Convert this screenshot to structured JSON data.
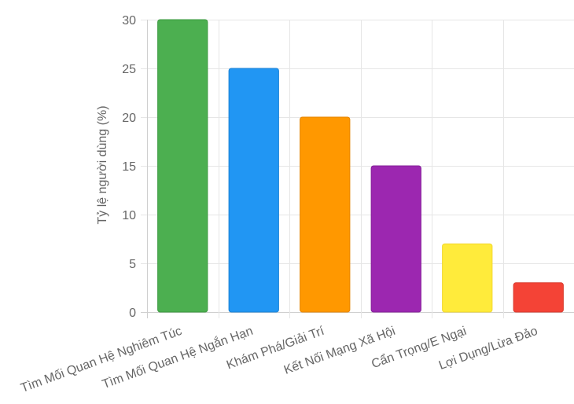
{
  "chart_data": {
    "type": "bar",
    "title": "",
    "xlabel": "",
    "ylabel": "Tỷ lệ người dùng (%)",
    "categories": [
      "Tìm Mối Quan Hệ Nghiêm Túc",
      "Tìm Mối Quan Hệ Ngắn Hạn",
      "Khám Phá/Giải Trí",
      "Kết Nối Mạng Xã Hội",
      "Cẩn Trọng/E Ngại",
      "Lợi Dụng/Lừa Đảo"
    ],
    "values": [
      30,
      25,
      20,
      15,
      7,
      3
    ],
    "colors": [
      "#4caf50",
      "#2196f3",
      "#ff9800",
      "#9c27b0",
      "#ffeb3b",
      "#f44336"
    ],
    "border_colors": [
      "#3d9a41",
      "#1a82d6",
      "#e68500",
      "#85209a",
      "#f2d82e",
      "#d93a2e"
    ],
    "ylim": [
      0,
      30
    ],
    "yticks": [
      0,
      5,
      10,
      15,
      20,
      25,
      30
    ],
    "grid": true,
    "legend": "none"
  }
}
